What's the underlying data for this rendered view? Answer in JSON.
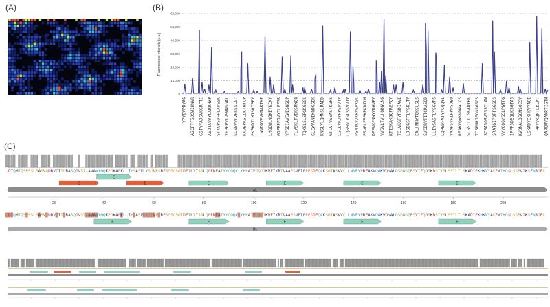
{
  "panels": {
    "a": "(A)",
    "b": "(B)",
    "c": "(C)"
  },
  "panel_a": {
    "type": "heatmap",
    "colormap": [
      "#05060f",
      "#14206a",
      "#2a3fb0",
      "#3f7fd6",
      "#39c5c9",
      "#c8e04a",
      "#e0553a"
    ]
  },
  "chart_data": {
    "type": "line",
    "ylabel": "Fluorescence intensity (a.u.)",
    "ylim": [
      0,
      60000
    ],
    "yticks": [
      "0",
      "10,000",
      "20,000",
      "30,000",
      "40,000",
      "50,000",
      "60,000"
    ],
    "grid": true,
    "line_color": "#3b3f8c",
    "categories": [
      "YPYDVPDYAG",
      "ASCFTFSDSWIHWVR",
      "GSTYYADSVKGRFTI",
      "AEDTAVYYCARRHWP",
      "STKGPSVFPLAPSSK",
      "YFPEPVTVSWNSGAL",
      "SLSSVVTVPSSSLGT",
      "KKVEPKSCDKTHTCP",
      "PKPKDTLMISRTPEV",
      "WVDGVEVHNAKTKP",
      "LHQDWLNGKEYKCKV",
      "GQPREPQVYTLPPSR",
      "YPSDIAVEWESNGQP",
      "FLYSKLTVDKSRWQQ",
      "TQKSLSLSPGKGSGS",
      "GLEWVANIKQDGSEK",
      "KNSLYLQMNSLRAED",
      "GTLVTVSSASTKGPS",
      "LGCLVKDYFPEPVTV",
      "LQSSGLYSLSSVVTV",
      "PSNTKVDKRVEPKSC",
      "PSVFLFPPKPKDTLM",
      "DPEVKFNWYVDGVEV",
      "VVSVLTVLHQDWLNG",
      "KTISKAKGQPREPQV",
      "TCLVKGFYPSDIAVE",
      "LDSDGSFFLYSKLTV",
      "EALHNHYTQKSLSLS",
      "SVCDRVTITCRASQD",
      "LLIYSASFLYSGVPS",
      "LQPEDFATYYCQQYL",
      "VAAPSVFIFPPSDEQ",
      "REAKVQWKVDNALQS",
      "SLSSTLTLSKADYEK",
      "TCSFNRGECGSGSGS",
      "SCRASQRVSSSYLAW",
      "SRATGIPDRFSGSGS",
      "VYYCQQYGSLPWTFG",
      "IFPPSDEQLKSGTAS",
      "KVDNALQSGNSQESV",
      "LSKADYEKHKVYACE",
      "PKYVKQNTLKLAT",
      "QARQMVQAMRTIGTH"
    ],
    "peaks": [
      [
        0.1,
        7500
      ],
      [
        1.0,
        12000
      ],
      [
        1.7,
        8000
      ],
      [
        1.8,
        48000
      ],
      [
        2.1,
        9000
      ],
      [
        2.4,
        4000
      ],
      [
        2.9,
        7000
      ],
      [
        3.2,
        35000
      ],
      [
        3.7,
        3000
      ],
      [
        4.7,
        2000
      ],
      [
        6.3,
        2000
      ],
      [
        6.6,
        19000
      ],
      [
        6.7,
        32000
      ],
      [
        7.4,
        23000
      ],
      [
        8.1,
        3000
      ],
      [
        8.5,
        2000
      ],
      [
        9.4,
        43000
      ],
      [
        10.0,
        13000
      ],
      [
        10.4,
        7000
      ],
      [
        11.4,
        28000
      ],
      [
        11.7,
        4000
      ],
      [
        12.4,
        29000
      ],
      [
        12.6,
        7000
      ],
      [
        13.8,
        5000
      ],
      [
        14.0,
        5000
      ],
      [
        14.8,
        4000
      ],
      [
        15.2,
        12000
      ],
      [
        15.3,
        15000
      ],
      [
        16.1,
        51000
      ],
      [
        17.0,
        3000
      ],
      [
        17.5,
        5000
      ],
      [
        18.5,
        3000
      ],
      [
        18.7,
        4000
      ],
      [
        19.3,
        47000
      ],
      [
        19.6,
        21000
      ],
      [
        19.7,
        8000
      ],
      [
        20.4,
        3000
      ],
      [
        21.1,
        2000
      ],
      [
        21.4,
        4000
      ],
      [
        22.3,
        25000
      ],
      [
        22.4,
        15000
      ],
      [
        22.7,
        9000
      ],
      [
        22.9,
        17000
      ],
      [
        23.2,
        56000
      ],
      [
        23.4,
        14000
      ],
      [
        24.3,
        7000
      ],
      [
        24.6,
        7000
      ],
      [
        25.4,
        9000
      ],
      [
        26.6,
        3000
      ],
      [
        27.7,
        7000
      ],
      [
        28.0,
        53000
      ],
      [
        28.1,
        33000
      ],
      [
        28.3,
        48000
      ],
      [
        28.4,
        11000
      ],
      [
        29.2,
        31000
      ],
      [
        29.3,
        25000
      ],
      [
        29.9,
        3000
      ],
      [
        30.2,
        22000
      ],
      [
        30.8,
        13000
      ],
      [
        31.2,
        5000
      ],
      [
        32.4,
        8000
      ],
      [
        34.6,
        23000
      ],
      [
        35.8,
        55000
      ],
      [
        36.0,
        32000
      ],
      [
        36.7,
        3000
      ],
      [
        37.4,
        10000
      ],
      [
        37.7,
        5000
      ],
      [
        38.8,
        6000
      ],
      [
        39.0,
        4000
      ],
      [
        40.1,
        39000
      ],
      [
        40.9,
        58000
      ],
      [
        41.5,
        49000
      ],
      [
        41.9,
        4000
      ]
    ]
  },
  "panel_c": {
    "sequence": "DIQMTQSPSSLSASVGDRVTITCRASQDVST-AVAWYQQKPGKAPKLLIYSASFLYSGVPSRFSGSGSGTDFTLTISSLQPEDFATYYCQQYLYHPATFGQGTKVEIKRTVAAPSVFIFPPSDEQLKSGTASVVCLLNNFYPREAKVQWKVDNALQSGNSQESVTEQDSKDSTYSLSSTLTLSKADYEKHKVYACEVTHQGLSSPVTKSFNRGEC",
    "ticks": [
      "20",
      "40",
      "60",
      "80",
      "100",
      "120",
      "140",
      "160",
      "180",
      "200"
    ],
    "strand_label": "E",
    "row1": {
      "chain_label": "AL",
      "strands_teal": [
        [
          37,
          51
        ],
        [
          74,
          90
        ],
        [
          105,
          120
        ],
        [
          136,
          151
        ],
        [
          174,
          189
        ]
      ],
      "strands_orange": [
        [
          22,
          38
        ],
        [
          49,
          64
        ]
      ]
    },
    "row2": {
      "chain_label": "BL",
      "strands_teal": [
        [
          36,
          51
        ],
        [
          74,
          90
        ],
        [
          105,
          120
        ],
        [
          136,
          151
        ],
        [
          174,
          189
        ]
      ],
      "highlights": [
        1,
        2,
        3,
        9,
        14,
        17,
        21,
        24,
        33,
        34,
        35,
        36,
        37,
        47,
        52,
        56,
        57,
        58,
        59,
        60,
        62,
        85,
        86,
        94,
        100,
        101,
        102,
        103
      ]
    },
    "colors": {
      "teal": "#8fd3bd",
      "orange": "#e0613d",
      "chain_dark": "#8c8c8c",
      "chain_light": "#a9a9ad",
      "highlight": "#c0705e"
    }
  }
}
